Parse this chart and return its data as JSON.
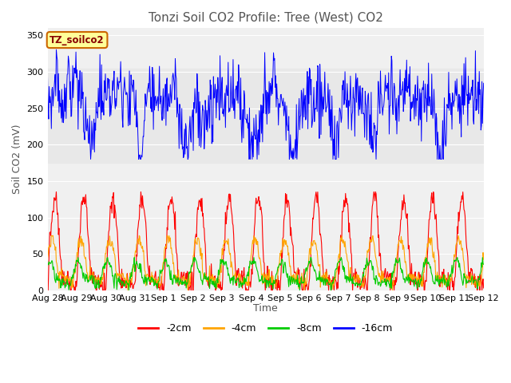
{
  "title": "Tonzi Soil CO2 Profile: Tree (West) CO2",
  "ylabel": "Soil CO2 (mV)",
  "xlabel": "Time",
  "label_box": "TZ_soilco2",
  "ylim": [
    0,
    360
  ],
  "yticks": [
    0,
    50,
    100,
    150,
    200,
    250,
    300,
    350
  ],
  "x_labels": [
    "Aug 28",
    "Aug 29",
    "Aug 30",
    "Aug 31",
    "Sep 1",
    "Sep 2",
    "Sep 3",
    "Sep 4",
    "Sep 5",
    "Sep 6",
    "Sep 7",
    "Sep 8",
    "Sep 9",
    "Sep 10",
    "Sep 11",
    "Sep 12"
  ],
  "legend": [
    {
      "label": "-2cm",
      "color": "#ff0000"
    },
    {
      "label": "-4cm",
      "color": "#ffa500"
    },
    {
      "label": "-8cm",
      "color": "#00cc00"
    },
    {
      "label": "-16cm",
      "color": "#0000ff"
    }
  ],
  "bg_gray_band": [
    175,
    305
  ],
  "n_points": 800,
  "seed": 7,
  "title_fontsize": 11,
  "axis_fontsize": 9,
  "tick_fontsize": 8,
  "legend_fontsize": 9,
  "figwidth": 6.4,
  "figheight": 4.8,
  "dpi": 100
}
